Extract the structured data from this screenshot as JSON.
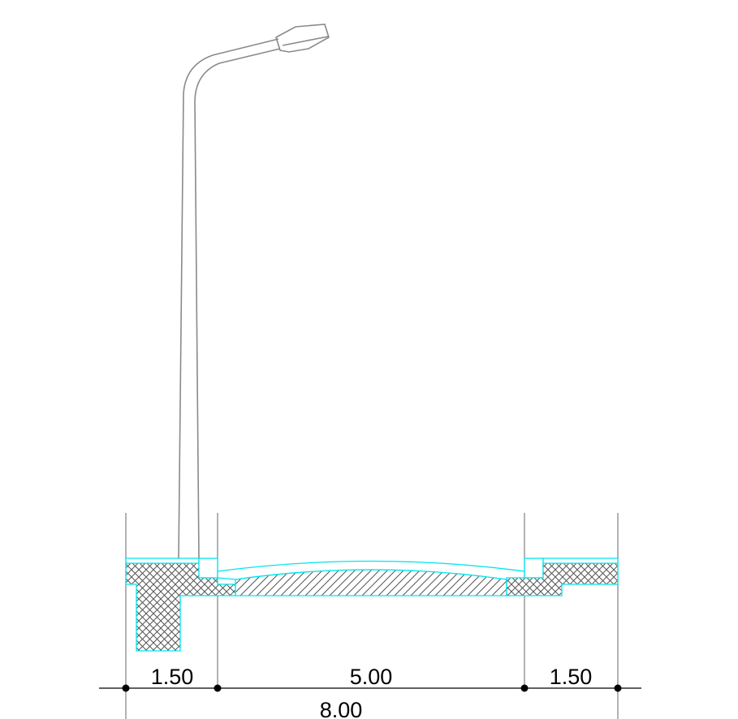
{
  "drawing": {
    "kind": "road cross-section",
    "components": [
      "street-lamp",
      "left-sidewalk",
      "left-curb",
      "carriageway",
      "right-curb",
      "right-sidewalk"
    ]
  },
  "dimensions": {
    "left_sidewalk": "1.50",
    "carriageway": "5.00",
    "right_sidewalk": "1.50",
    "total": "8.00"
  },
  "colors": {
    "background": "#ffffff",
    "outline_gray": "#808080",
    "pavement_cyan": "#00e5ee",
    "hatch": "#555555",
    "dimension_line": "#000000"
  },
  "icons": {
    "lamp": "street-lamp-icon",
    "tick": "dimension-dot"
  }
}
